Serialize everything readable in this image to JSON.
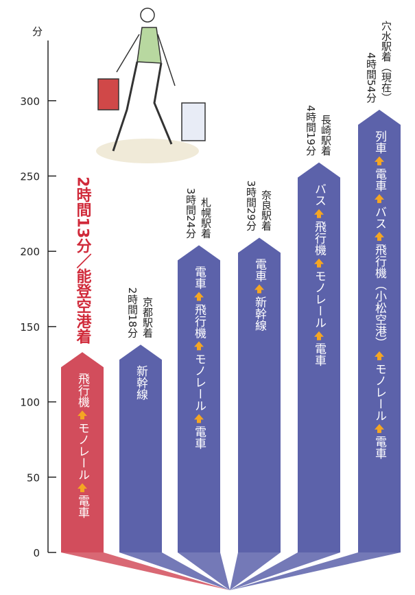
{
  "chart_data": {
    "type": "bar",
    "y_unit": "分",
    "categories": [
      "／能登空港着",
      "京都駅着",
      "札幌駅着",
      "奈良駅着",
      "長崎駅着",
      "穴水駅着（現在）"
    ],
    "values": [
      133,
      138,
      204,
      209,
      259,
      294
    ],
    "value_labels": [
      "2時間13分",
      "2時間18分",
      "3時間24分",
      "3時間29分",
      "4時間19分",
      "4時間54分"
    ],
    "colors": [
      "#d24d5c",
      "#5c62aa",
      "#5c62aa",
      "#5c62aa",
      "#5c62aa",
      "#5c62aa"
    ],
    "routes": [
      [
        "飛行機",
        "モノレール",
        "電車"
      ],
      [
        "新幹線"
      ],
      [
        "電車",
        "飛行機",
        "モノレール",
        "電車"
      ],
      [
        "電車",
        "新幹線"
      ],
      [
        "バス",
        "飛行機",
        "モノレール",
        "電車"
      ],
      [
        "列車",
        "電車",
        "バス",
        "飛行機（小松空港）",
        "モノレール",
        "電車"
      ]
    ],
    "ylim": [
      0,
      340
    ],
    "yticks": [
      0,
      50,
      100,
      150,
      200,
      250,
      300
    ]
  }
}
